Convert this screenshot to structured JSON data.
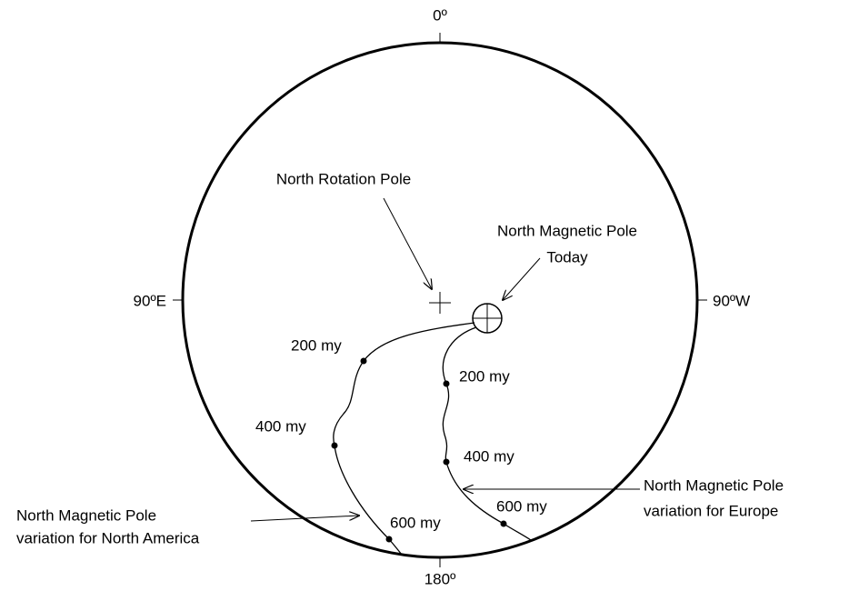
{
  "compass": {
    "top": "0º",
    "left": "90ºE",
    "right": "90ºW",
    "bottom": "180º"
  },
  "rotation_pole": {
    "label": "North Rotation Pole"
  },
  "magnetic_pole": {
    "label": [
      "North Magnetic Pole",
      "Today"
    ]
  },
  "north_america": {
    "label": [
      "North Magnetic Pole",
      "variation for North America"
    ],
    "points": [
      "200 my",
      "400 my",
      "600 my"
    ]
  },
  "europe": {
    "label": [
      "North Magnetic Pole",
      "variation for Europe"
    ],
    "points": [
      "200 my",
      "400 my",
      "600 my"
    ]
  }
}
